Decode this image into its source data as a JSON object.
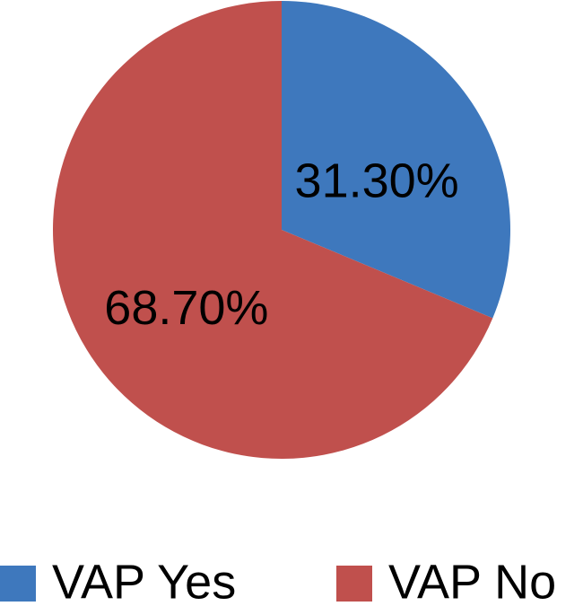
{
  "chart_data": {
    "type": "pie",
    "categories": [
      "VAP Yes",
      "VAP No"
    ],
    "values": [
      31.3,
      68.7
    ],
    "value_labels": [
      "31.30%",
      "68.70%"
    ],
    "colors": [
      "#3e78bd",
      "#c0504d"
    ]
  }
}
